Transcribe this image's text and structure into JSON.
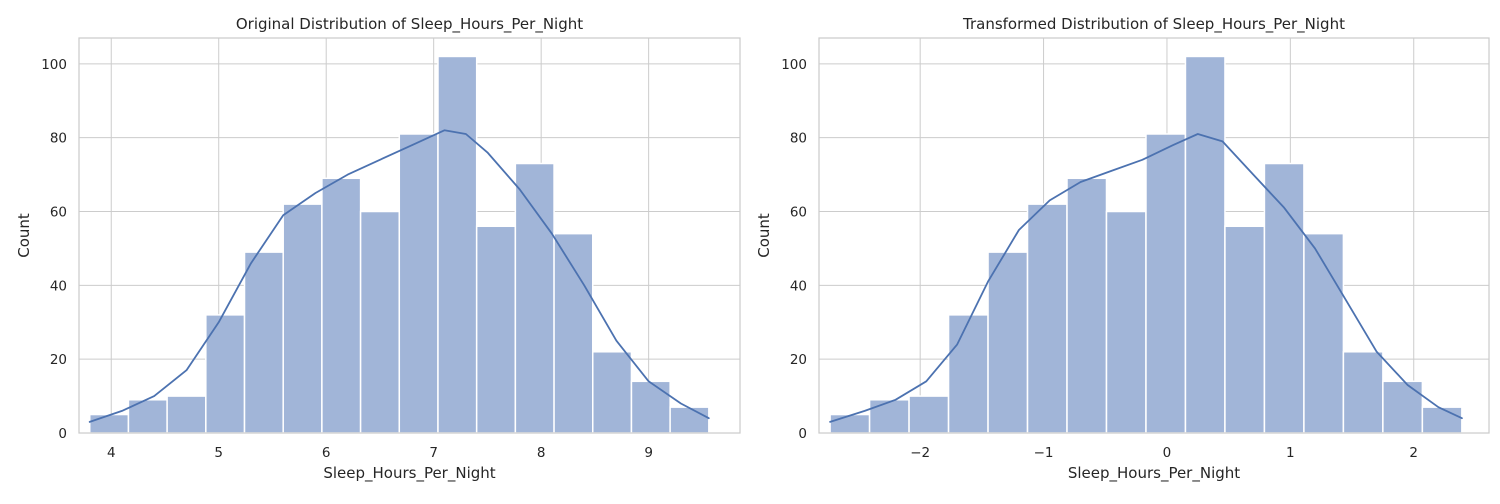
{
  "colors": {
    "bar": "#a1b5d8",
    "kde": "#4c72b0",
    "grid": "#cccccc"
  },
  "chart_data": [
    {
      "type": "bar",
      "title": "Original Distribution of Sleep_Hours_Per_Night",
      "xlabel": "Sleep_Hours_Per_Night",
      "ylabel": "Count",
      "xlim": [
        3.7,
        9.85
      ],
      "ylim": [
        0,
        107
      ],
      "xticks": [
        4,
        5,
        6,
        7,
        8,
        9
      ],
      "xtick_labels": [
        "4",
        "5",
        "6",
        "7",
        "8",
        "9"
      ],
      "yticks": [
        0,
        20,
        40,
        60,
        80,
        100
      ],
      "ytick_labels": [
        "0",
        "20",
        "40",
        "60",
        "80",
        "100"
      ],
      "grid": true,
      "bin_edges": [
        3.8,
        4.16,
        4.52,
        4.88,
        5.24,
        5.6,
        5.96,
        6.32,
        6.68,
        7.04,
        7.4,
        7.76,
        8.12,
        8.48,
        8.84,
        9.2,
        9.56
      ],
      "values": [
        5,
        9,
        10,
        32,
        49,
        62,
        69,
        60,
        81,
        102,
        56,
        73,
        54,
        22,
        14,
        7
      ],
      "kde": {
        "x": [
          3.8,
          4.1,
          4.4,
          4.7,
          5.0,
          5.3,
          5.6,
          5.9,
          6.2,
          6.5,
          6.8,
          7.1,
          7.3,
          7.5,
          7.8,
          8.1,
          8.4,
          8.7,
          9.0,
          9.3,
          9.56
        ],
        "y": [
          3,
          6,
          10,
          17,
          30,
          46,
          59,
          65,
          70,
          74,
          78,
          82,
          81,
          76,
          66,
          54,
          40,
          25,
          14,
          8,
          4
        ]
      }
    },
    {
      "type": "bar",
      "title": "Transformed Distribution of Sleep_Hours_Per_Night",
      "xlabel": "Sleep_Hours_Per_Night",
      "ylabel": "Count",
      "xlim": [
        -2.82,
        2.61
      ],
      "ylim": [
        0,
        107
      ],
      "xticks": [
        -2,
        -1,
        0,
        1,
        2
      ],
      "xtick_labels": [
        "−2",
        "−1",
        "0",
        "1",
        "2"
      ],
      "yticks": [
        0,
        20,
        40,
        60,
        80,
        100
      ],
      "ytick_labels": [
        "0",
        "20",
        "40",
        "60",
        "80",
        "100"
      ],
      "grid": true,
      "bin_edges": [
        -2.73,
        -2.41,
        -2.09,
        -1.77,
        -1.45,
        -1.13,
        -0.81,
        -0.49,
        -0.17,
        0.15,
        0.47,
        0.79,
        1.11,
        1.43,
        1.75,
        2.07,
        2.39
      ],
      "values": [
        5,
        9,
        10,
        32,
        49,
        62,
        69,
        60,
        81,
        102,
        56,
        73,
        54,
        22,
        14,
        7
      ],
      "kde": {
        "x": [
          -2.73,
          -2.45,
          -2.2,
          -1.95,
          -1.7,
          -1.45,
          -1.2,
          -0.95,
          -0.7,
          -0.45,
          -0.2,
          0.05,
          0.25,
          0.45,
          0.7,
          0.95,
          1.2,
          1.45,
          1.7,
          1.95,
          2.2,
          2.39
        ],
        "y": [
          3,
          6,
          9,
          14,
          24,
          41,
          55,
          63,
          68,
          71,
          74,
          78,
          81,
          79,
          70,
          61,
          50,
          36,
          22,
          13,
          7,
          4
        ]
      }
    }
  ]
}
